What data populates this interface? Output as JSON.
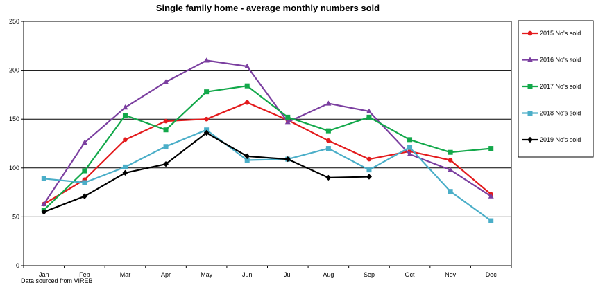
{
  "chart_data": {
    "type": "line",
    "title": "Single family home - average monthly numbers sold",
    "source_note": "Data sourced from VIREB",
    "categories": [
      "Jan",
      "Feb",
      "Mar",
      "Apr",
      "May",
      "Jun",
      "Jul",
      "Aug",
      "Sep",
      "Oct",
      "Nov",
      "Dec"
    ],
    "ylim": [
      0,
      250
    ],
    "yticks": [
      0,
      50,
      100,
      150,
      200,
      250
    ],
    "grid": true,
    "legend_position": "right",
    "series": [
      {
        "name": "2015 No's sold",
        "color": "#e31a1c",
        "marker": "circle",
        "values": [
          63,
          88,
          129,
          148,
          150,
          167,
          149,
          128,
          109,
          117,
          108,
          73
        ]
      },
      {
        "name": "2016 No's sold",
        "color": "#7b3fa0",
        "marker": "triangle",
        "values": [
          63,
          126,
          162,
          188,
          210,
          204,
          147,
          166,
          158,
          114,
          98,
          71
        ]
      },
      {
        "name": "2017 No's sold",
        "color": "#12a84a",
        "marker": "square",
        "values": [
          57,
          97,
          154,
          139,
          178,
          184,
          152,
          138,
          152,
          129,
          116,
          120
        ]
      },
      {
        "name": "2018 No's sold",
        "color": "#4aaec8",
        "marker": "square",
        "values": [
          89,
          85,
          101,
          122,
          139,
          108,
          109,
          120,
          98,
          121,
          76,
          46
        ]
      },
      {
        "name": "2019 No's sold",
        "color": "#000000",
        "marker": "diamond",
        "values": [
          55,
          71,
          95,
          104,
          136,
          112,
          109,
          90,
          91,
          null,
          null,
          null
        ]
      }
    ]
  }
}
